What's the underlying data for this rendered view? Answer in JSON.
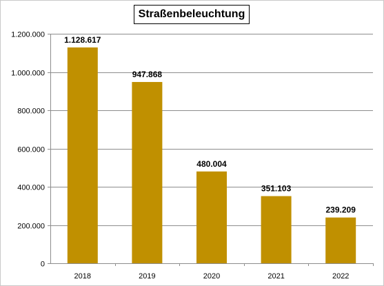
{
  "chart_data": {
    "type": "bar",
    "title": "Straßenbeleuchtung",
    "categories": [
      "2018",
      "2019",
      "2020",
      "2021",
      "2022"
    ],
    "values": [
      1128617,
      947868,
      480004,
      351103,
      239209
    ],
    "value_labels": [
      "1.128.617",
      "947.868",
      "480.004",
      "351.103",
      "239.209"
    ],
    "ylim": [
      0,
      1200000
    ],
    "yticks": [
      0,
      200000,
      400000,
      600000,
      800000,
      1000000,
      1200000
    ],
    "ytick_labels": [
      "0",
      "200.000",
      "400.000",
      "600.000",
      "800.000",
      "1.000.000",
      "1.200.000"
    ],
    "grid": true,
    "legend": "none",
    "bar_color": "#C09000",
    "xlabel": "",
    "ylabel": ""
  }
}
